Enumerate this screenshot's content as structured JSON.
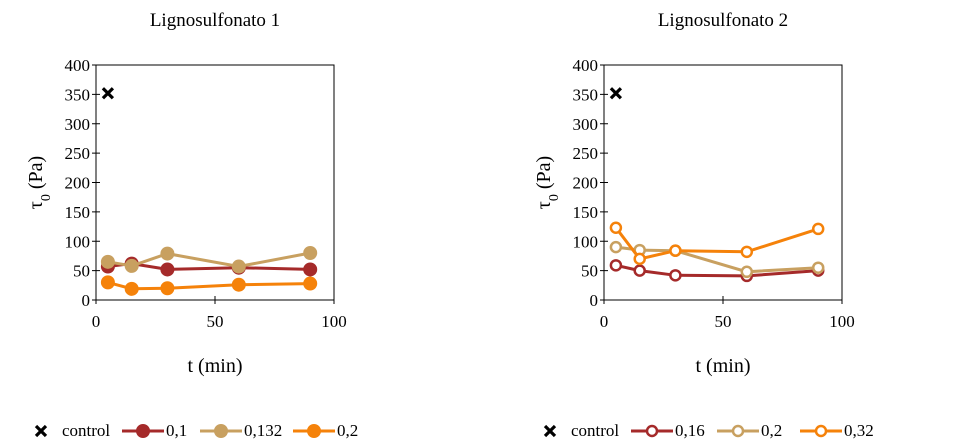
{
  "chart_data": [
    {
      "type": "line",
      "title": "Lignosulfonato 1",
      "xlabel": "t (min)",
      "ylabel": "τ",
      "ylabel_sub": "0",
      "ylabel_unit": " (Pa)",
      "xlim": [
        0,
        100
      ],
      "ylim": [
        0,
        400
      ],
      "xticks": [
        0,
        50,
        100
      ],
      "yticks": [
        0,
        50,
        100,
        150,
        200,
        250,
        300,
        350,
        400
      ],
      "grid": false,
      "legend_position": "bottom",
      "marker_fill": "filled",
      "control": {
        "name": "control",
        "x": 5,
        "y": 352
      },
      "series": [
        {
          "name": "0,1",
          "color": "#a52a2a",
          "x": [
            5,
            15,
            30,
            60,
            90
          ],
          "y": [
            57,
            62,
            52,
            55,
            52
          ]
        },
        {
          "name": "0,132",
          "color": "#c8a060",
          "x": [
            5,
            15,
            30,
            60,
            90
          ],
          "y": [
            65,
            58,
            79,
            57,
            80
          ]
        },
        {
          "name": "0,2",
          "color": "#f5820a",
          "x": [
            5,
            15,
            30,
            60,
            90
          ],
          "y": [
            30,
            19,
            20,
            26,
            28
          ]
        }
      ]
    },
    {
      "type": "line",
      "title": "Lignosulfonato 2",
      "xlabel": "t (min)",
      "ylabel": "τ",
      "ylabel_sub": "0",
      "ylabel_unit": " (Pa)",
      "xlim": [
        0,
        100
      ],
      "ylim": [
        0,
        400
      ],
      "xticks": [
        0,
        50,
        100
      ],
      "yticks": [
        0,
        50,
        100,
        150,
        200,
        250,
        300,
        350,
        400
      ],
      "grid": false,
      "legend_position": "bottom",
      "marker_fill": "hollow",
      "control": {
        "name": "control",
        "x": 5,
        "y": 352
      },
      "series": [
        {
          "name": "0,16",
          "color": "#a52a2a",
          "x": [
            5,
            15,
            30,
            60,
            90
          ],
          "y": [
            59,
            50,
            42,
            41,
            50
          ]
        },
        {
          "name": "0,2",
          "color": "#c8a060",
          "x": [
            5,
            15,
            30,
            60,
            90
          ],
          "y": [
            90,
            85,
            84,
            48,
            55
          ]
        },
        {
          "name": "0,32",
          "color": "#f5820a",
          "x": [
            5,
            15,
            30,
            60,
            90
          ],
          "y": [
            123,
            70,
            84,
            82,
            121
          ]
        }
      ]
    }
  ]
}
